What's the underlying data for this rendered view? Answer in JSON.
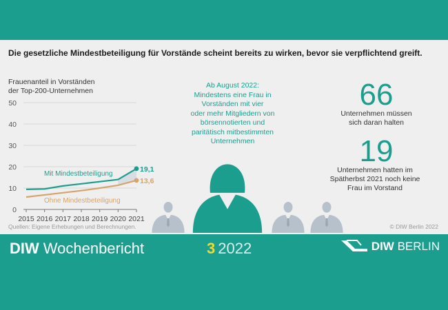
{
  "headline": "Die gesetzliche Mindestbeteiligung für Vorstände scheint bereits zu wirken, bevor sie verpflichtend greift.",
  "chart_data": {
    "type": "line",
    "ylabel_lines": [
      "Frauenanteil in Vorständen",
      "der Top-200-Unternehmen"
    ],
    "x": [
      2015,
      2016,
      2017,
      2018,
      2019,
      2020,
      2021
    ],
    "ylim": [
      0,
      50
    ],
    "yticks": [
      0,
      10,
      20,
      30,
      40,
      50
    ],
    "series": [
      {
        "name": "Mit Mindestbeteiligung",
        "values": [
          9.4,
          9.6,
          11.0,
          12.0,
          13.0,
          14.0,
          19.1
        ],
        "color": "#1c9e8e",
        "end_label": "19,1"
      },
      {
        "name": "Ohne Mindestbeteiligung",
        "values": [
          5.8,
          6.8,
          7.8,
          8.8,
          10.0,
          11.3,
          13.6
        ],
        "color": "#d6a46a",
        "end_label": "13,6"
      }
    ]
  },
  "center_lines": [
    "Ab August 2022:",
    "Mindestens eine Frau in",
    "Vorständen mit vier",
    "oder mehr Mitgliedern von",
    "börsennotierten und",
    "paritätisch mitbestimmten",
    "Unternehmen"
  ],
  "stat1": {
    "value": "66",
    "lines": [
      "Unternehmen müssen",
      "sich daran halten"
    ]
  },
  "stat2": {
    "value": "19",
    "lines": [
      "Unternehmen hatten im",
      "Spätherbst 2021 noch keine",
      "Frau im Vorstand"
    ]
  },
  "source": "Quellen: Eigene Erhebungen und Berechnungen.",
  "copyright": "© DIW Berlin 2022",
  "footer": {
    "brand_bold": "DIW",
    "brand_rest": "Wochenbericht",
    "issue_num": "3",
    "issue_year": "2022",
    "logo_bold": "DIW",
    "logo_rest": "BERLIN"
  },
  "colors": {
    "teal": "#1c9e8e",
    "tan": "#d6a46a",
    "silhouette": "#b7c1cc"
  }
}
